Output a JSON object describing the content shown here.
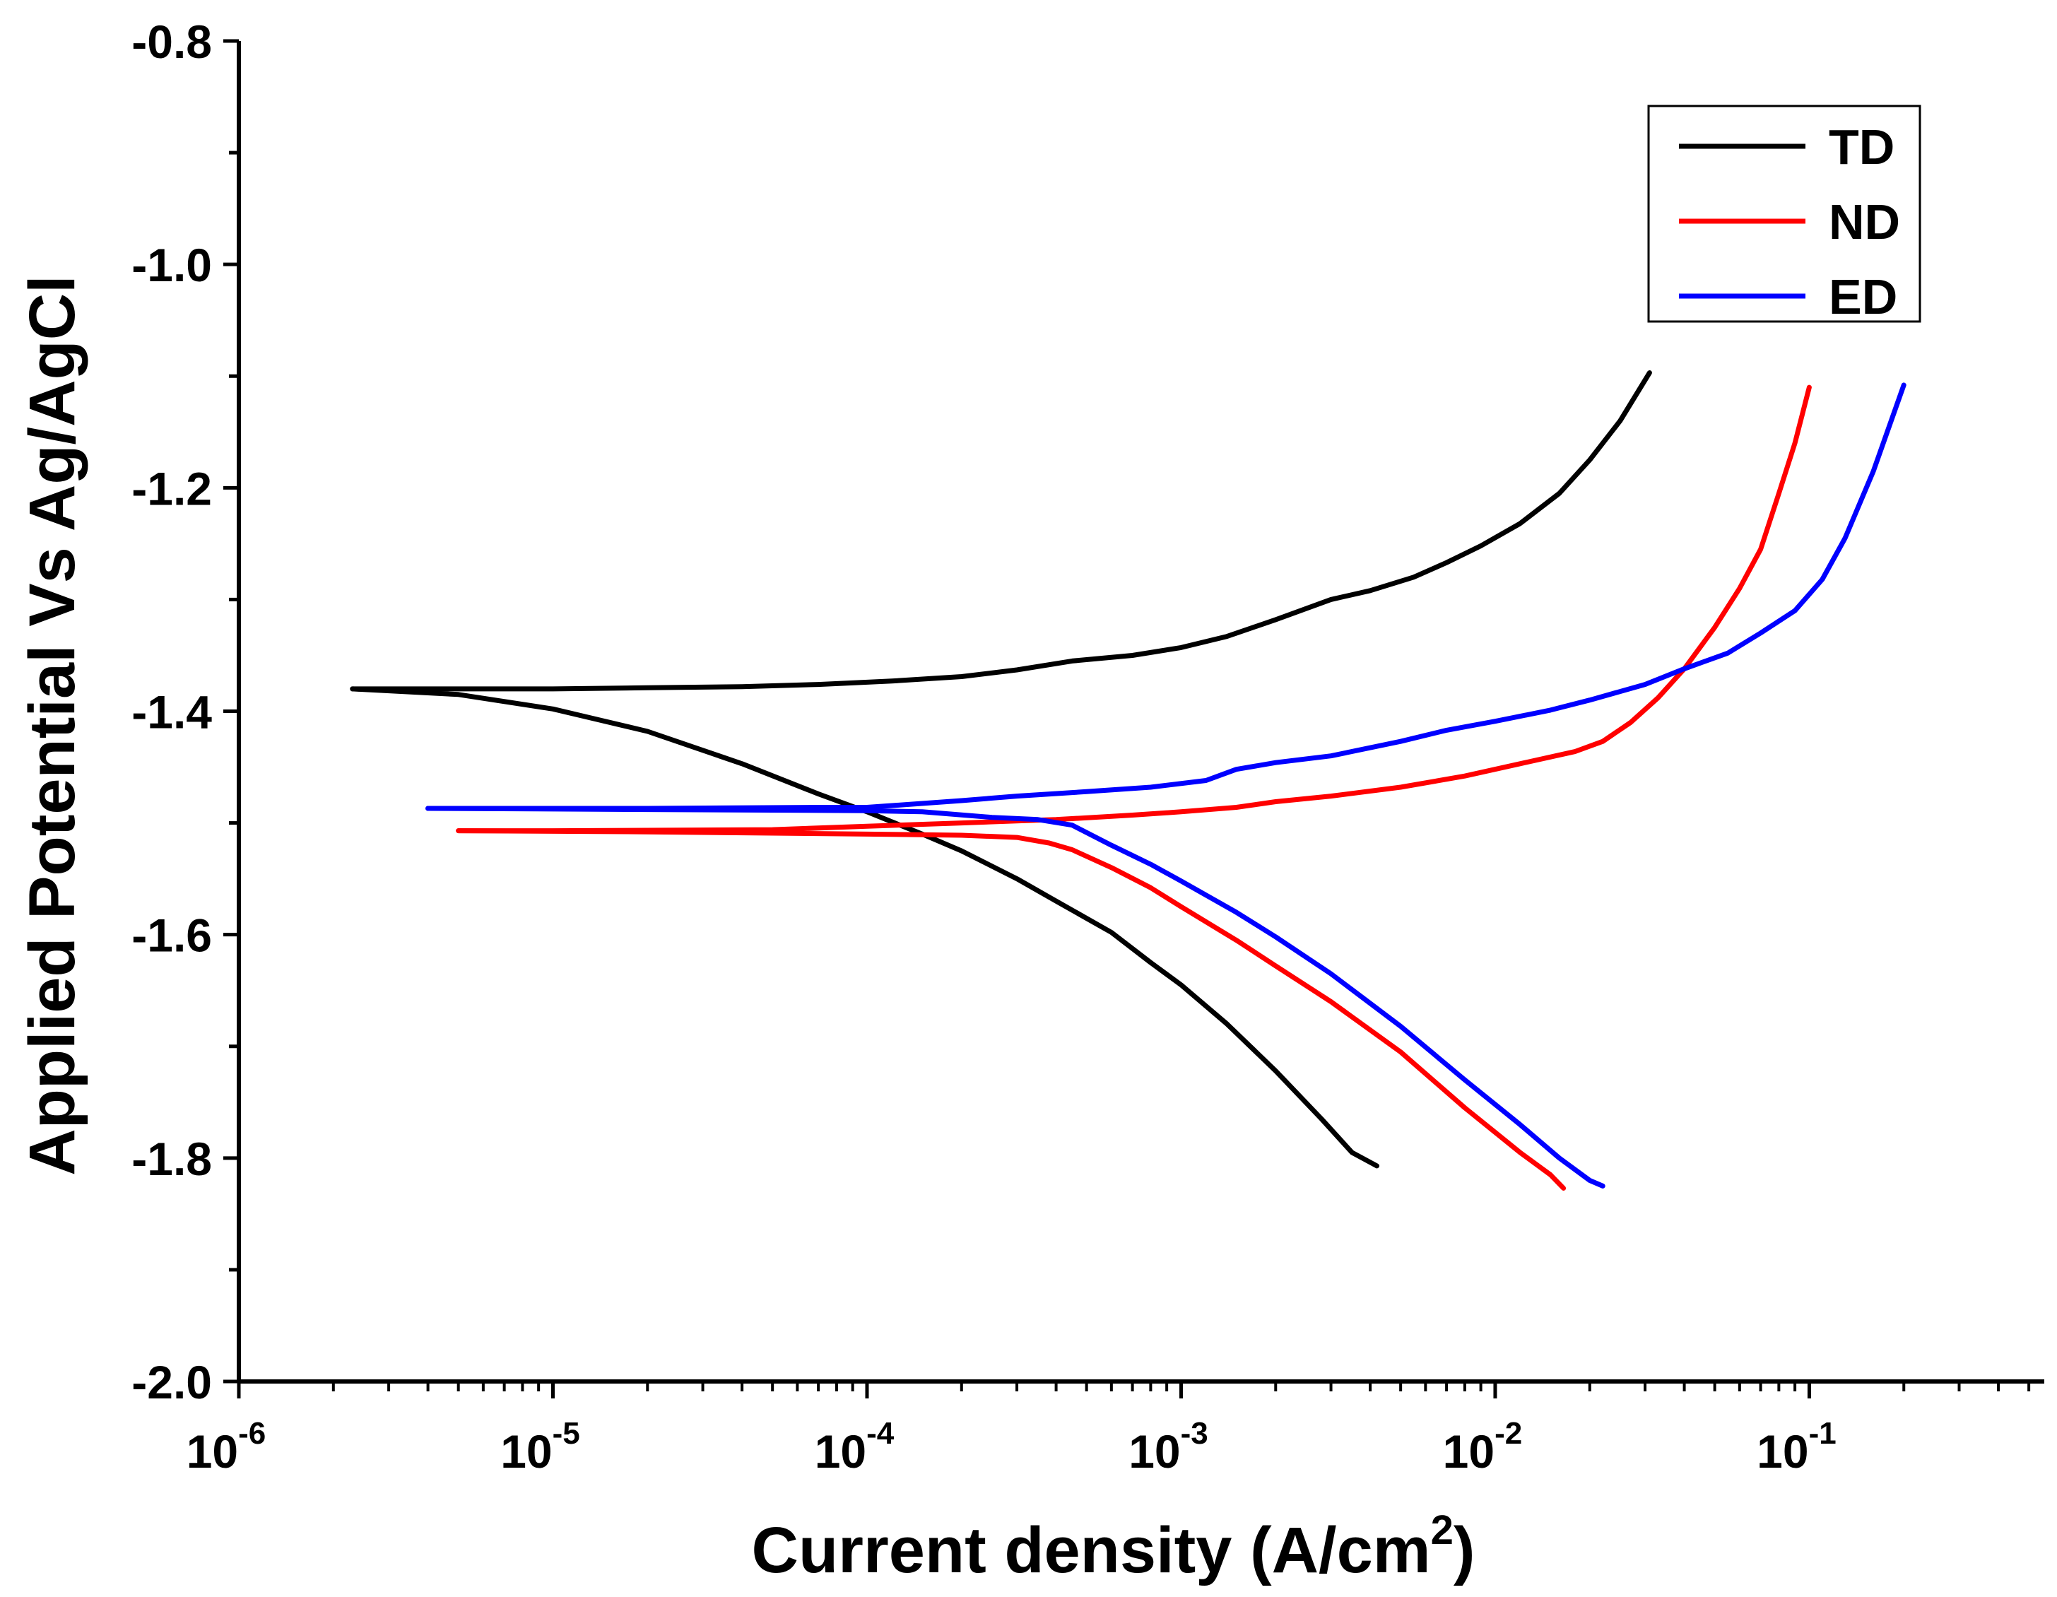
{
  "chart_data": {
    "type": "line",
    "xscale": "log",
    "xlim": [
      1e-06,
      0.56
    ],
    "ylim": [
      -2.0,
      -0.8
    ],
    "xlabel": "Current density (A/cm",
    "xlabel_sup": "2",
    "xlabel_close": ")",
    "ylabel": "Applied Potential Vs Ag/AgCl",
    "x_ticks": [
      {
        "base": "10",
        "exp": "-6",
        "value": 1e-06
      },
      {
        "base": "10",
        "exp": "-5",
        "value": 1e-05
      },
      {
        "base": "10",
        "exp": "-4",
        "value": 0.0001
      },
      {
        "base": "10",
        "exp": "-3",
        "value": 0.001
      },
      {
        "base": "10",
        "exp": "-2",
        "value": 0.01
      },
      {
        "base": "10",
        "exp": "-1",
        "value": 0.1
      }
    ],
    "y_ticks": [
      {
        "label": "-0.8",
        "value": -0.8
      },
      {
        "label": "-1.0",
        "value": -1.0
      },
      {
        "label": "-1.2",
        "value": -1.2
      },
      {
        "label": "-1.4",
        "value": -1.4
      },
      {
        "label": "-1.6",
        "value": -1.6
      },
      {
        "label": "-1.8",
        "value": -1.8
      },
      {
        "label": "-2.0",
        "value": -2.0
      }
    ],
    "legend_position": "top-right",
    "series": [
      {
        "name": "TD",
        "color": "#000000",
        "branches": [
          [
            [
              2.3e-06,
              -1.38
            ],
            [
              5e-06,
              -1.38
            ],
            [
              1e-05,
              -1.38
            ],
            [
              2e-05,
              -1.379
            ],
            [
              4e-05,
              -1.378
            ],
            [
              7e-05,
              -1.376
            ],
            [
              0.00012,
              -1.373
            ],
            [
              0.0002,
              -1.369
            ],
            [
              0.0003,
              -1.363
            ],
            [
              0.00045,
              -1.355
            ],
            [
              0.0007,
              -1.35
            ],
            [
              0.001,
              -1.343
            ],
            [
              0.0014,
              -1.333
            ],
            [
              0.002,
              -1.318
            ],
            [
              0.003,
              -1.3
            ],
            [
              0.004,
              -1.292
            ],
            [
              0.0055,
              -1.28
            ],
            [
              0.007,
              -1.267
            ],
            [
              0.009,
              -1.252
            ],
            [
              0.012,
              -1.232
            ],
            [
              0.016,
              -1.205
            ],
            [
              0.02,
              -1.175
            ],
            [
              0.025,
              -1.14
            ],
            [
              0.031,
              -1.097
            ]
          ],
          [
            [
              2.3e-06,
              -1.38
            ],
            [
              5e-06,
              -1.385
            ],
            [
              1e-05,
              -1.398
            ],
            [
              2e-05,
              -1.418
            ],
            [
              4e-05,
              -1.447
            ],
            [
              7e-05,
              -1.474
            ],
            [
              0.0001,
              -1.49
            ],
            [
              0.00015,
              -1.51
            ],
            [
              0.0002,
              -1.525
            ],
            [
              0.0003,
              -1.55
            ],
            [
              0.0004,
              -1.57
            ],
            [
              0.0006,
              -1.598
            ],
            [
              0.0008,
              -1.625
            ],
            [
              0.001,
              -1.645
            ],
            [
              0.0014,
              -1.68
            ],
            [
              0.002,
              -1.722
            ],
            [
              0.0028,
              -1.765
            ],
            [
              0.0035,
              -1.795
            ],
            [
              0.0042,
              -1.807
            ]
          ]
        ]
      },
      {
        "name": "ND",
        "color": "#ff0000",
        "branches": [
          [
            [
              5e-06,
              -1.507
            ],
            [
              1e-05,
              -1.507
            ],
            [
              5e-05,
              -1.506
            ],
            [
              0.0001,
              -1.503
            ],
            [
              0.0002,
              -1.5
            ],
            [
              0.0004,
              -1.497
            ],
            [
              0.0007,
              -1.493
            ],
            [
              0.001,
              -1.49
            ],
            [
              0.0015,
              -1.486
            ],
            [
              0.002,
              -1.481
            ],
            [
              0.003,
              -1.476
            ],
            [
              0.005,
              -1.468
            ],
            [
              0.008,
              -1.458
            ],
            [
              0.012,
              -1.447
            ],
            [
              0.018,
              -1.436
            ],
            [
              0.022,
              -1.427
            ],
            [
              0.027,
              -1.41
            ],
            [
              0.033,
              -1.388
            ],
            [
              0.04,
              -1.362
            ],
            [
              0.05,
              -1.325
            ],
            [
              0.06,
              -1.29
            ],
            [
              0.07,
              -1.255
            ],
            [
              0.08,
              -1.205
            ],
            [
              0.09,
              -1.16
            ],
            [
              0.1,
              -1.11
            ]
          ],
          [
            [
              5e-06,
              -1.507
            ],
            [
              2e-05,
              -1.508
            ],
            [
              0.0001,
              -1.51
            ],
            [
              0.0002,
              -1.511
            ],
            [
              0.0003,
              -1.513
            ],
            [
              0.00038,
              -1.518
            ],
            [
              0.00045,
              -1.524
            ],
            [
              0.0006,
              -1.54
            ],
            [
              0.0008,
              -1.558
            ],
            [
              0.001,
              -1.575
            ],
            [
              0.0015,
              -1.605
            ],
            [
              0.002,
              -1.628
            ],
            [
              0.003,
              -1.66
            ],
            [
              0.005,
              -1.705
            ],
            [
              0.008,
              -1.755
            ],
            [
              0.012,
              -1.795
            ],
            [
              0.015,
              -1.815
            ],
            [
              0.0165,
              -1.827
            ]
          ]
        ]
      },
      {
        "name": "ED",
        "color": "#0000ff",
        "branches": [
          [
            [
              4e-06,
              -1.487
            ],
            [
              2e-05,
              -1.487
            ],
            [
              7e-05,
              -1.486
            ],
            [
              0.0001,
              -1.486
            ],
            [
              0.0002,
              -1.48
            ],
            [
              0.0003,
              -1.476
            ],
            [
              0.0005,
              -1.472
            ],
            [
              0.0008,
              -1.468
            ],
            [
              0.0012,
              -1.462
            ],
            [
              0.0015,
              -1.452
            ],
            [
              0.002,
              -1.446
            ],
            [
              0.003,
              -1.44
            ],
            [
              0.005,
              -1.427
            ],
            [
              0.007,
              -1.417
            ],
            [
              0.01,
              -1.409
            ],
            [
              0.015,
              -1.399
            ],
            [
              0.02,
              -1.39
            ],
            [
              0.03,
              -1.376
            ],
            [
              0.04,
              -1.362
            ],
            [
              0.055,
              -1.348
            ],
            [
              0.07,
              -1.33
            ],
            [
              0.09,
              -1.31
            ],
            [
              0.11,
              -1.282
            ],
            [
              0.13,
              -1.245
            ],
            [
              0.16,
              -1.185
            ],
            [
              0.2,
              -1.108
            ]
          ],
          [
            [
              4e-06,
              -1.487
            ],
            [
              2e-05,
              -1.488
            ],
            [
              0.0001,
              -1.489
            ],
            [
              0.00015,
              -1.49
            ],
            [
              0.00025,
              -1.495
            ],
            [
              0.00035,
              -1.497
            ],
            [
              0.00045,
              -1.502
            ],
            [
              0.0006,
              -1.52
            ],
            [
              0.0008,
              -1.537
            ],
            [
              0.001,
              -1.552
            ],
            [
              0.0015,
              -1.58
            ],
            [
              0.002,
              -1.602
            ],
            [
              0.003,
              -1.635
            ],
            [
              0.005,
              -1.682
            ],
            [
              0.008,
              -1.73
            ],
            [
              0.012,
              -1.77
            ],
            [
              0.016,
              -1.8
            ],
            [
              0.02,
              -1.82
            ],
            [
              0.022,
              -1.825
            ]
          ]
        ]
      }
    ]
  }
}
